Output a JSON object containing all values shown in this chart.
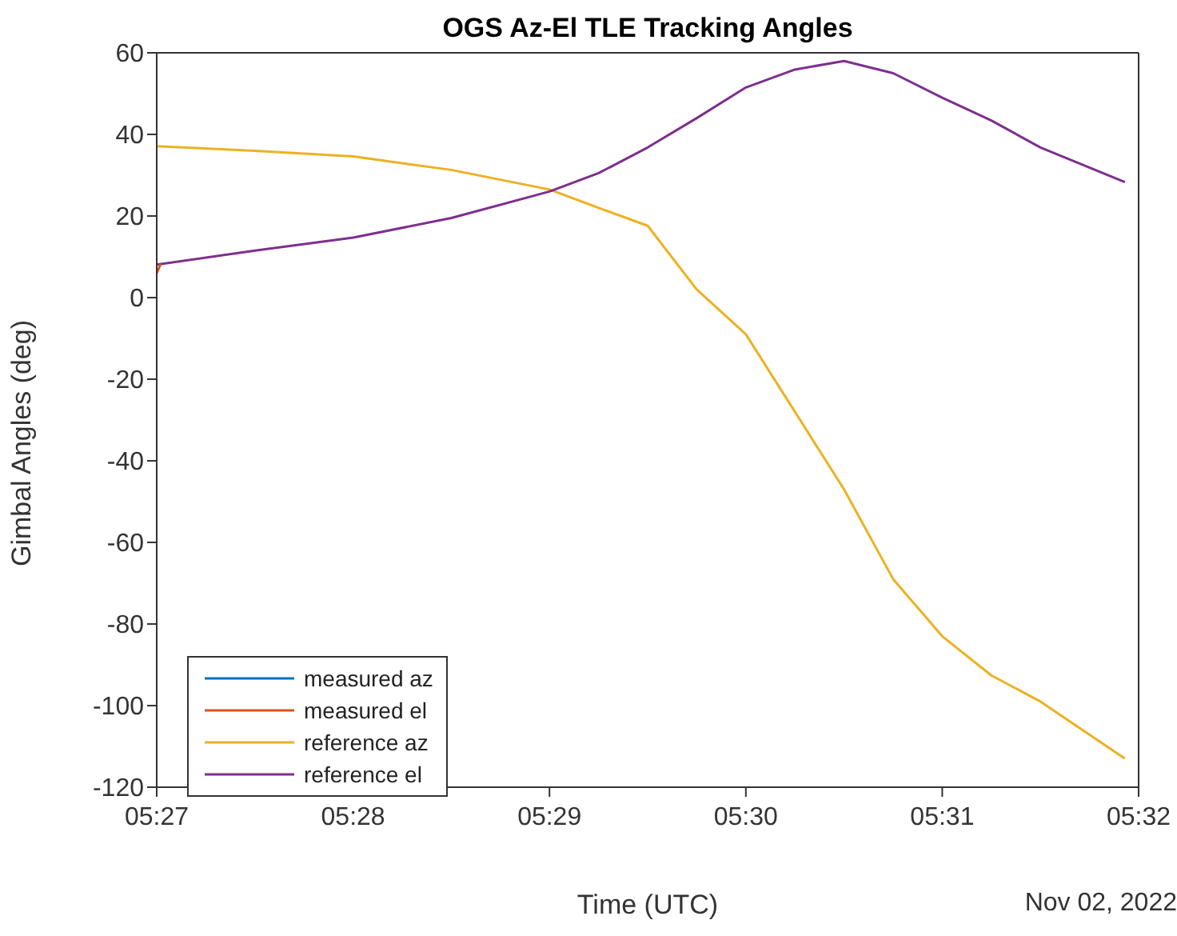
{
  "chart_data": {
    "type": "line",
    "title": "OGS Az-El TLE Tracking Angles",
    "xlabel": "Time (UTC)",
    "ylabel": "Gimbal Angles (deg)",
    "annotations": [
      "Nov 02, 2022"
    ],
    "x": [
      5.45,
      5.458333,
      5.466667,
      5.475,
      5.483333,
      5.4875,
      5.491667,
      5.495833,
      5.5,
      5.504167,
      5.508333,
      5.5125,
      5.516667,
      5.520833,
      5.525,
      5.532167
    ],
    "series": [
      {
        "name": "measured az",
        "color": "#0072bd",
        "values": [
          null,
          null,
          null,
          null,
          null,
          null,
          null,
          null,
          null,
          null,
          null,
          null,
          null,
          null,
          null,
          null
        ]
      },
      {
        "name": "measured el",
        "color": "#d95319",
        "x": [
          5.45,
          5.450333
        ],
        "values": [
          6,
          8.2
        ]
      },
      {
        "name": "reference az",
        "color": "#edb120",
        "values": [
          37.1,
          36,
          34.6,
          31.3,
          26.5,
          22,
          17.6,
          2,
          -9,
          -28,
          -47,
          -69,
          -83,
          -92.6,
          -99,
          -113
        ]
      },
      {
        "name": "reference el",
        "color": "#7e2f8e",
        "values": [
          8.1,
          11.5,
          14.7,
          19.5,
          26,
          30.5,
          36.8,
          44,
          51.5,
          55.9,
          58,
          55,
          49,
          43.4,
          36.8,
          28.3
        ]
      }
    ],
    "xlim": [
      5.45,
      5.533333
    ],
    "xticks": [
      {
        "value": 5.45,
        "label": "05:27"
      },
      {
        "value": 5.466667,
        "label": "05:28"
      },
      {
        "value": 5.483333,
        "label": "05:29"
      },
      {
        "value": 5.5,
        "label": "05:30"
      },
      {
        "value": 5.516667,
        "label": "05:31"
      },
      {
        "value": 5.533333,
        "label": "05:32"
      }
    ],
    "ylim": [
      -120,
      60
    ],
    "yticks": [
      -120,
      -100,
      -80,
      -60,
      -40,
      -20,
      0,
      20,
      40,
      60
    ],
    "legend": "bottom left",
    "grid": false,
    "marker": "none",
    "line_style": "solid"
  }
}
